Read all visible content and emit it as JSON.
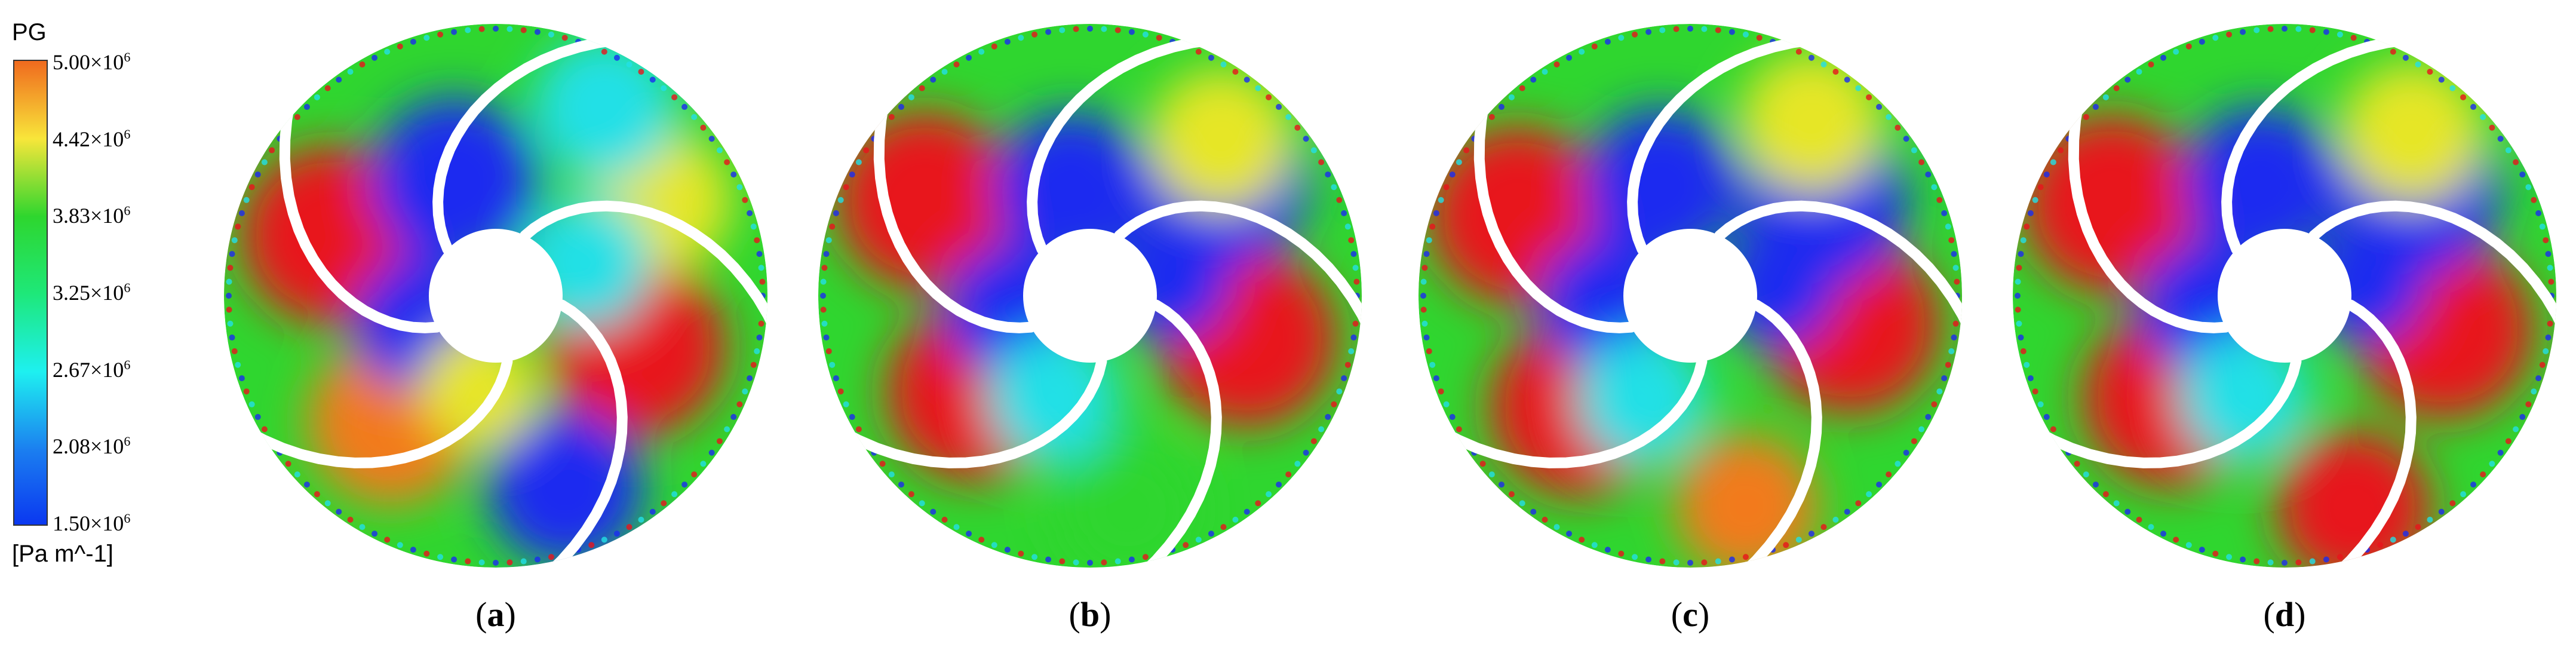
{
  "legend": {
    "title": "PG",
    "unit": "[Pa m^-1]",
    "ticks": [
      {
        "mant": "5.00",
        "exp": "6"
      },
      {
        "mant": "4.42",
        "exp": "6"
      },
      {
        "mant": "3.83",
        "exp": "6"
      },
      {
        "mant": "3.25",
        "exp": "6"
      },
      {
        "mant": "2.67",
        "exp": "6"
      },
      {
        "mant": "2.08",
        "exp": "6"
      },
      {
        "mant": "1.50",
        "exp": "6"
      }
    ],
    "colors": [
      "#f06a1e",
      "#f8e63a",
      "#2ed62e",
      "#1ee87a",
      "#1ef0f0",
      "#1b7ff0",
      "#0a35f0"
    ]
  },
  "panels": [
    {
      "id": "a",
      "label": "a"
    },
    {
      "id": "b",
      "label": "b"
    },
    {
      "id": "c",
      "label": "c"
    },
    {
      "id": "d",
      "label": "d"
    }
  ],
  "palette": {
    "red": "#e8141c",
    "orange": "#f27a1e",
    "yellow": "#e6e628",
    "green": "#2fd62f",
    "cyan": "#22e0e6",
    "blue": "#1a2cf0",
    "lightblue": "#2c8ef5"
  }
}
